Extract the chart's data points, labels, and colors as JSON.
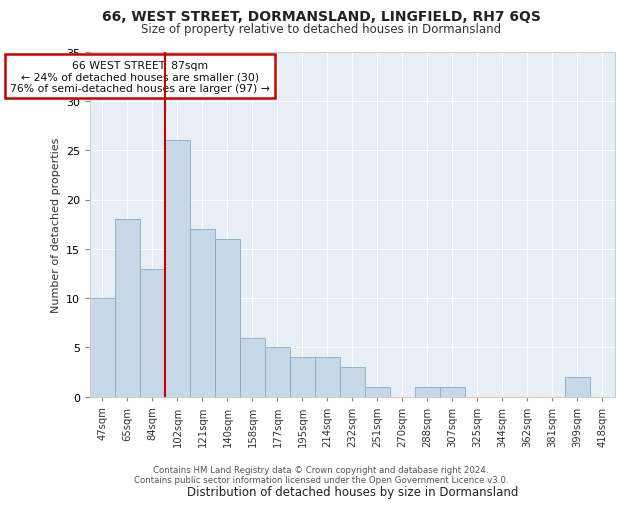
{
  "title1": "66, WEST STREET, DORMANSLAND, LINGFIELD, RH7 6QS",
  "title2": "Size of property relative to detached houses in Dormansland",
  "xlabel": "Distribution of detached houses by size in Dormansland",
  "ylabel": "Number of detached properties",
  "categories": [
    "47sqm",
    "65sqm",
    "84sqm",
    "102sqm",
    "121sqm",
    "140sqm",
    "158sqm",
    "177sqm",
    "195sqm",
    "214sqm",
    "232sqm",
    "251sqm",
    "270sqm",
    "288sqm",
    "307sqm",
    "325sqm",
    "344sqm",
    "362sqm",
    "381sqm",
    "399sqm",
    "418sqm"
  ],
  "values": [
    10,
    18,
    13,
    26,
    17,
    16,
    6,
    5,
    4,
    4,
    3,
    1,
    0,
    1,
    1,
    0,
    0,
    0,
    0,
    2,
    0
  ],
  "bar_color": "#c8d8e8",
  "bar_edge_color": "#8aaabf",
  "vline_color": "#cc0000",
  "vline_index": 2.5,
  "annotation_text": "66 WEST STREET: 87sqm\n← 24% of detached houses are smaller (30)\n76% of semi-detached houses are larger (97) →",
  "annotation_box_facecolor": "#ffffff",
  "annotation_box_edgecolor": "#cc0000",
  "ylim": [
    0,
    35
  ],
  "yticks": [
    0,
    5,
    10,
    15,
    20,
    25,
    30,
    35
  ],
  "footer": "Contains HM Land Registry data © Crown copyright and database right 2024.\nContains public sector information licensed under the Open Government Licence v3.0.",
  "fig_facecolor": "#ffffff",
  "axes_facecolor": "#e8eef5",
  "grid_color": "#ffffff"
}
